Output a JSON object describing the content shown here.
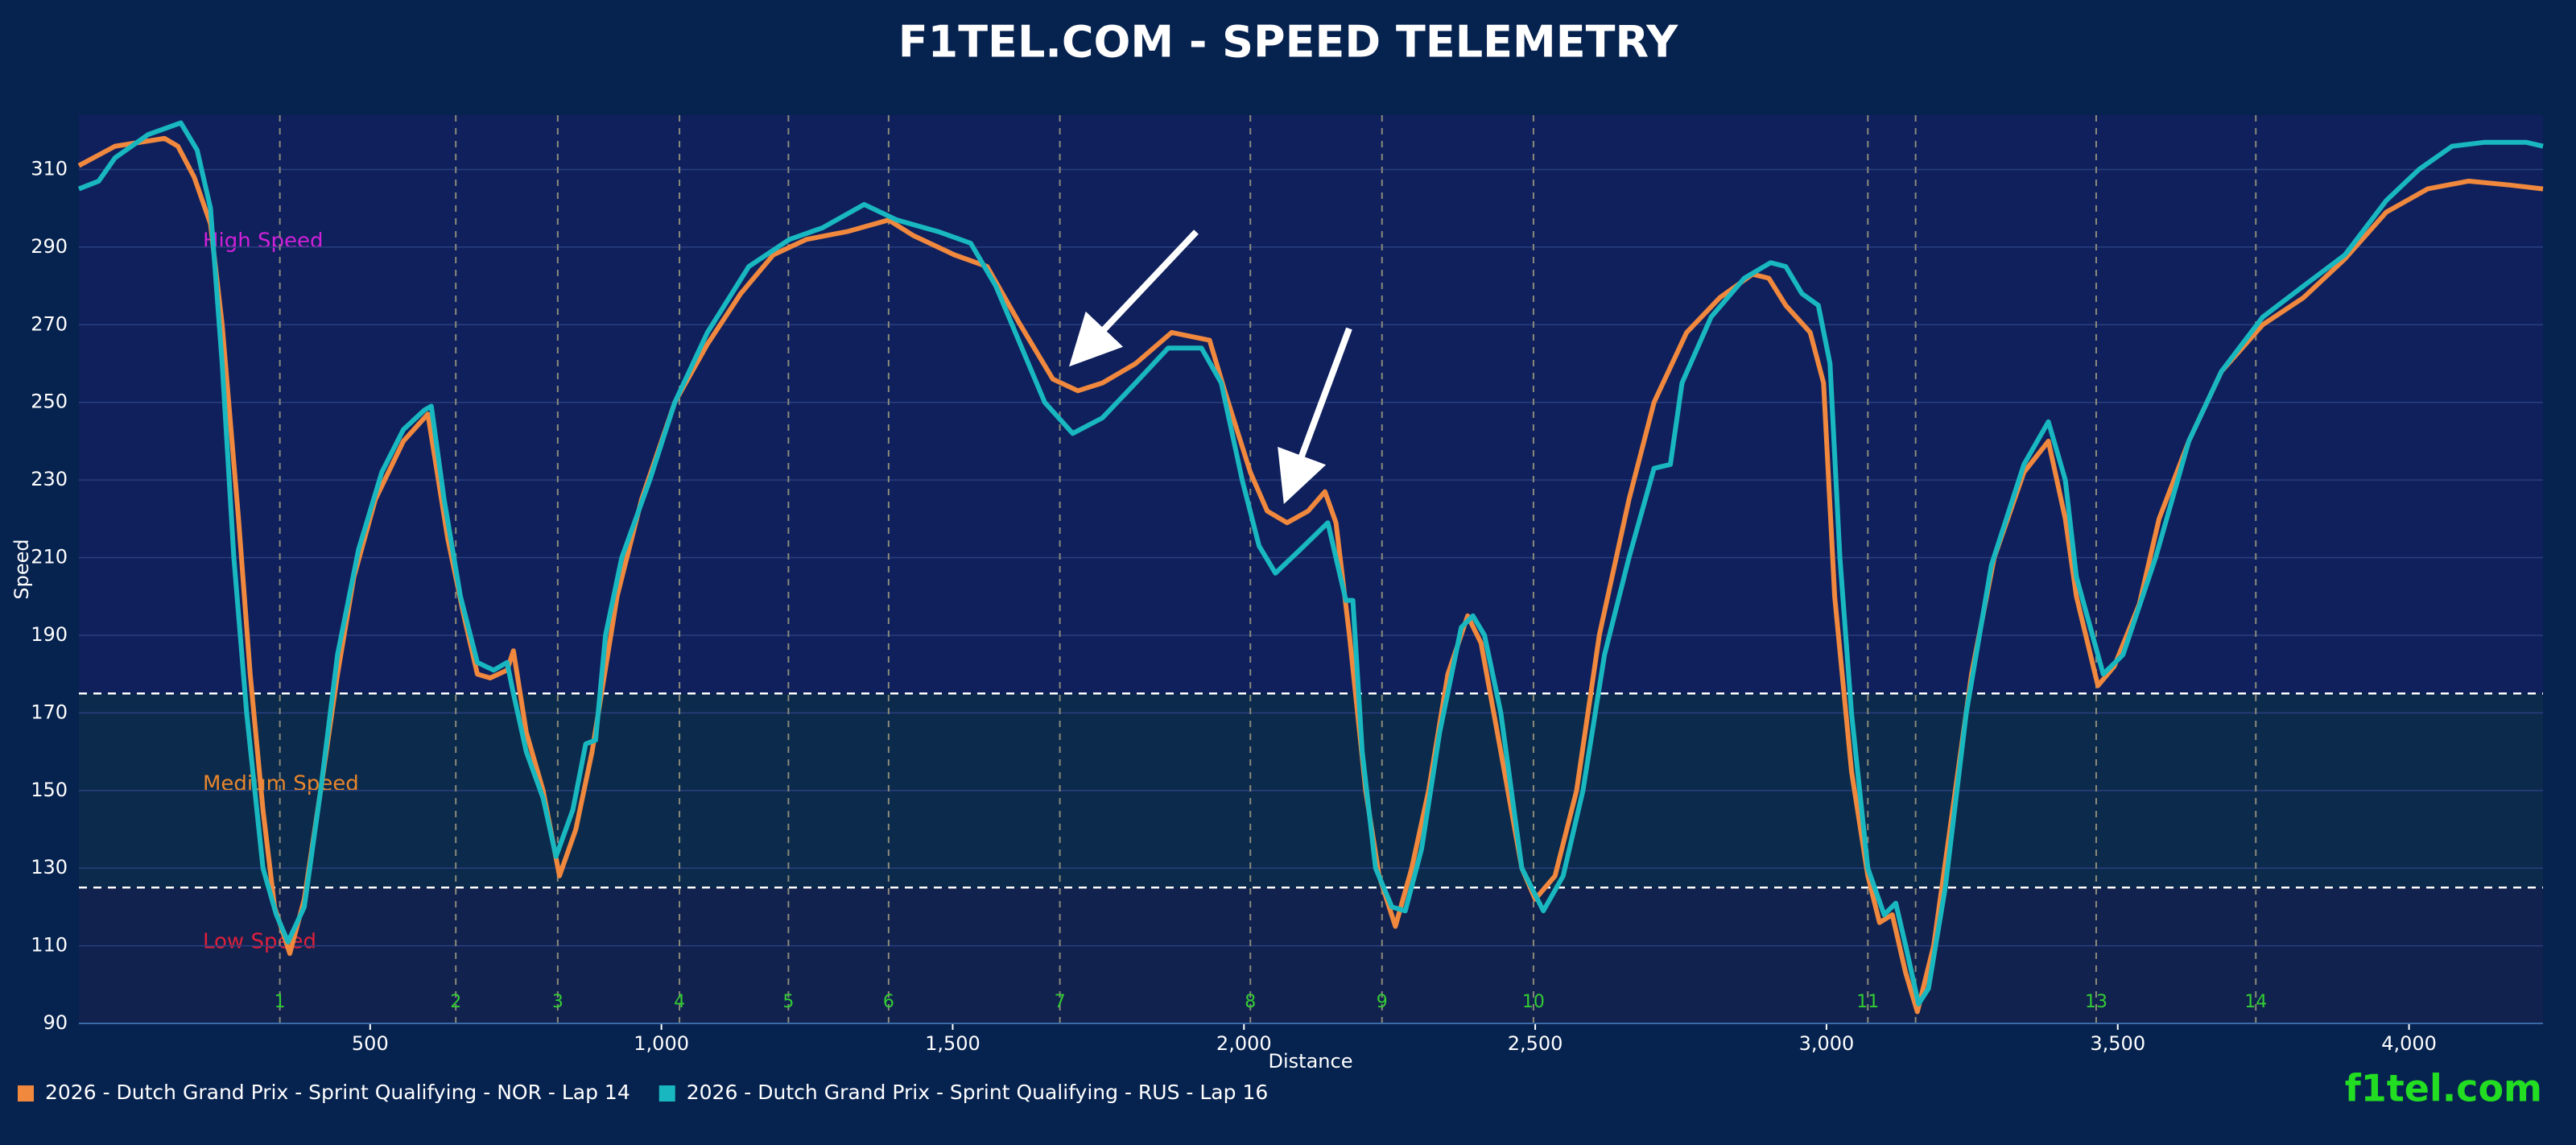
{
  "chart_data": {
    "type": "line",
    "title": "F1TEL.COM - SPEED TELEMETRY",
    "x_label": "Distance",
    "y_label": "Speed",
    "watermark": "f1tel.com",
    "xlim": [
      0,
      4230
    ],
    "ylim": [
      90,
      324
    ],
    "xticks": [
      500,
      {
        "value": 1000,
        "label": "1,000"
      },
      {
        "value": 1500,
        "label": "1,500"
      },
      {
        "value": 2000,
        "label": "2,000"
      },
      {
        "value": 2500,
        "label": "2,500"
      },
      {
        "value": 3000,
        "label": "3,000"
      },
      {
        "value": 3500,
        "label": "3,500"
      },
      {
        "value": 4000,
        "label": "4,000"
      }
    ],
    "yticks": [
      90,
      110,
      130,
      150,
      170,
      190,
      210,
      230,
      250,
      270,
      290,
      310
    ],
    "grid": true,
    "legend": "bottom-left",
    "zone_thresholds": [
      125,
      175
    ],
    "zones": [
      {
        "label": "Low Speed",
        "color": "#e0203a",
        "fill": "#12224e"
      },
      {
        "label": "Medium Speed",
        "color": "#e8862c",
        "fill": "#0c2a4b"
      },
      {
        "label": "High Speed",
        "color": "#d020d8",
        "fill": "#0f205c"
      }
    ],
    "corners": {
      "x": [
        345,
        647,
        822,
        1031,
        1218,
        1390,
        1684,
        2011,
        2237,
        2497,
        3071,
        3153,
        3463,
        3737
      ],
      "labels": [
        "1",
        "2",
        "3",
        "4",
        "5",
        "6",
        "7",
        "8",
        "9",
        "10",
        "11",
        null,
        "13",
        "14"
      ],
      "color": "#33cc33"
    },
    "series": [
      {
        "name": "2026 - Dutch Grand Prix - Sprint Qualifying - NOR - Lap 14",
        "color": "#f0883e",
        "x": [
          0,
          62,
          147,
          170,
          198,
          226,
          246,
          274,
          294,
          316,
          336,
          362,
          387,
          415,
          444,
          472,
          509,
          557,
          599,
          633,
          661,
          684,
          706,
          735,
          746,
          768,
          797,
          825,
          853,
          881,
          924,
          966,
          1023,
          1079,
          1136,
          1192,
          1249,
          1319,
          1390,
          1432,
          1503,
          1559,
          1616,
          1672,
          1715,
          1757,
          1814,
          1876,
          1941,
          1969,
          2011,
          2040,
          2074,
          2110,
          2139,
          2158,
          2181,
          2209,
          2232,
          2260,
          2288,
          2317,
          2350,
          2384,
          2407,
          2441,
          2477,
          2500,
          2534,
          2571,
          2610,
          2661,
          2704,
          2760,
          2817,
          2873,
          2901,
          2930,
          2972,
          2995,
          3014,
          3043,
          3071,
          3091,
          3113,
          3136,
          3156,
          3184,
          3212,
          3249,
          3288,
          3339,
          3381,
          3410,
          3429,
          3466,
          3494,
          3537,
          3571,
          3622,
          3678,
          3749,
          3819,
          3890,
          3961,
          4032,
          4102,
          4173,
          4230
        ],
        "values": [
          311,
          316,
          318,
          316,
          308,
          296,
          270,
          220,
          180,
          145,
          120,
          108,
          122,
          150,
          180,
          205,
          225,
          240,
          247,
          215,
          195,
          180,
          179,
          181,
          186,
          165,
          150,
          128,
          140,
          160,
          200,
          225,
          250,
          265,
          278,
          288,
          292,
          294,
          297,
          293,
          288,
          285,
          270,
          256,
          253,
          255,
          260,
          268,
          266,
          252,
          232,
          222,
          219,
          222,
          227,
          219,
          190,
          150,
          128,
          115,
          130,
          150,
          180,
          195,
          188,
          160,
          130,
          122,
          128,
          150,
          190,
          225,
          250,
          268,
          277,
          283,
          282,
          275,
          268,
          255,
          200,
          155,
          128,
          116,
          118,
          103,
          93,
          110,
          140,
          180,
          210,
          232,
          240,
          220,
          200,
          177,
          182,
          198,
          220,
          240,
          258,
          270,
          277,
          287,
          299,
          305,
          307,
          306,
          305
        ]
      },
      {
        "name": "2026 - Dutch Grand Prix - Sprint Qualifying - RUS - Lap 16",
        "color": "#19b8c0",
        "x": [
          0,
          34,
          62,
          119,
          175,
          203,
          226,
          246,
          266,
          288,
          316,
          339,
          359,
          387,
          415,
          444,
          480,
          520,
          557,
          593,
          605,
          627,
          655,
          684,
          712,
          735,
          746,
          768,
          797,
          819,
          848,
          870,
          887,
          904,
          932,
          980,
          1023,
          1079,
          1150,
          1220,
          1277,
          1348,
          1404,
          1475,
          1531,
          1574,
          1616,
          1658,
          1706,
          1757,
          1814,
          1870,
          1927,
          1961,
          1997,
          2026,
          2054,
          2096,
          2144,
          2175,
          2187,
          2203,
          2226,
          2254,
          2277,
          2305,
          2336,
          2373,
          2393,
          2413,
          2441,
          2477,
          2514,
          2548,
          2582,
          2619,
          2661,
          2704,
          2732,
          2752,
          2802,
          2859,
          2904,
          2930,
          2958,
          2986,
          3006,
          3023,
          3043,
          3071,
          3099,
          3119,
          3136,
          3158,
          3175,
          3204,
          3240,
          3283,
          3339,
          3381,
          3410,
          3429,
          3475,
          3509,
          3565,
          3622,
          3678,
          3749,
          3819,
          3890,
          3961,
          4017,
          4074,
          4130,
          4201,
          4230
        ],
        "values": [
          305,
          307,
          313,
          319,
          322,
          315,
          300,
          260,
          210,
          170,
          130,
          118,
          111,
          120,
          150,
          185,
          212,
          232,
          243,
          248,
          249,
          225,
          200,
          183,
          181,
          183,
          175,
          160,
          148,
          133,
          145,
          162,
          163,
          190,
          210,
          230,
          250,
          268,
          285,
          292,
          295,
          301,
          297,
          294,
          291,
          280,
          265,
          250,
          242,
          246,
          255,
          264,
          264,
          255,
          230,
          213,
          206,
          212,
          219,
          199,
          199,
          160,
          130,
          120,
          119,
          135,
          165,
          192,
          195,
          190,
          170,
          130,
          119,
          128,
          150,
          185,
          210,
          233,
          234,
          255,
          272,
          282,
          286,
          285,
          278,
          275,
          260,
          210,
          170,
          130,
          118,
          121,
          110,
          95,
          99,
          125,
          170,
          208,
          234,
          245,
          230,
          205,
          180,
          185,
          210,
          240,
          258,
          272,
          280,
          288,
          302,
          310,
          316,
          317,
          317,
          316
        ]
      }
    ]
  }
}
